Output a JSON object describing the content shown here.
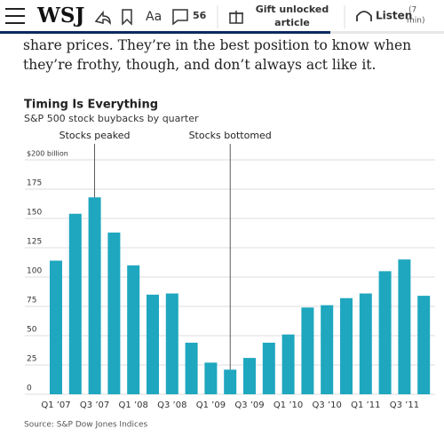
{
  "header": {
    "logo": "WSJ",
    "comments": "56",
    "gift_line1": "Gift unlocked",
    "gift_line2": "article",
    "listen": "Listen",
    "listen_time_line1": "(7",
    "listen_time_line2": "min)"
  },
  "article": {
    "paragraph": "share prices. They’re in the best position to know when they’re frothy, though, and don’t always act like it."
  },
  "chart_data": {
    "type": "bar",
    "title": "Timing Is Everything",
    "subtitle": "S&P 500 stock buybacks by quarter",
    "categories": [
      "Q1 ’07",
      null,
      "Q3 ’07",
      null,
      "Q1 ’08",
      null,
      "Q3 ’08",
      null,
      "Q1 ’09",
      null,
      "Q3 ’09",
      null,
      "Q1 ’10",
      null,
      "Q3 ’10",
      null,
      "Q1 ’11",
      null,
      "Q3 ’11",
      null
    ],
    "values": [
      114,
      154,
      168,
      138,
      110,
      85,
      86,
      44,
      27,
      21,
      31,
      44,
      51,
      74,
      76,
      82,
      86,
      105,
      115,
      84
    ],
    "color": "#1ea7bf",
    "ylim": [
      0,
      200
    ],
    "yticks": [
      0,
      25,
      50,
      75,
      100,
      125,
      150,
      175,
      {
        "value": 200,
        "label": "$200 billion"
      }
    ],
    "grid": true,
    "annotations": [
      "Stocks peaked",
      "Stocks bottomed"
    ],
    "source": "Source: S&P Dow Jones Indices"
  }
}
